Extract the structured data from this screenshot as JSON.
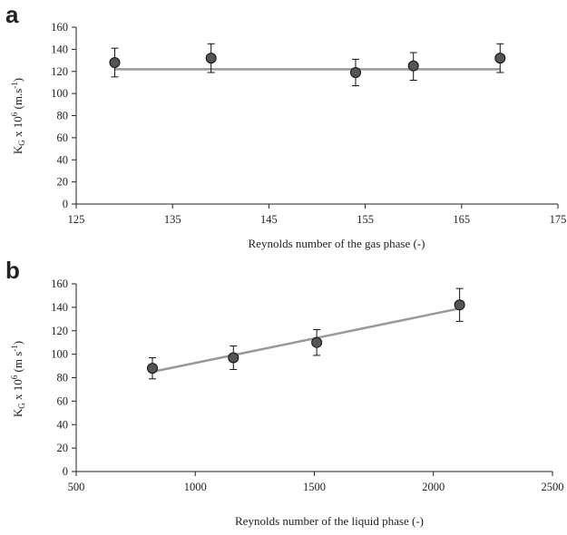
{
  "chart_data": [
    {
      "type": "scatter",
      "panel_label": "a",
      "xlabel": "Reynolds number of the gas phase (-)",
      "ylabel": "K",
      "ylabel_sub": "G",
      "ylabel_mid": " x 10",
      "ylabel_sup": "6",
      "ylabel_unit": " (m.s",
      "ylabel_unit_sup": "-1",
      "ylabel_end": ")",
      "xlim": [
        125,
        175
      ],
      "ylim": [
        0,
        160
      ],
      "xticks": [
        125,
        135,
        145,
        155,
        165,
        175
      ],
      "yticks": [
        0,
        20,
        40,
        60,
        80,
        100,
        120,
        140,
        160
      ],
      "grid": false,
      "points": {
        "x": [
          129,
          139,
          154,
          160,
          169
        ],
        "y": [
          128,
          132,
          119,
          125,
          132
        ],
        "error_low": [
          13,
          13,
          12,
          13,
          13
        ],
        "error_high": [
          13,
          13,
          12,
          12,
          13
        ]
      },
      "fit_line": {
        "x": [
          129,
          169
        ],
        "y": [
          122,
          122
        ]
      },
      "colors": {
        "marker": "#555555",
        "marker_edge": "#111111",
        "fit": "#999999",
        "axis": "#222222"
      }
    },
    {
      "type": "scatter",
      "panel_label": "b",
      "xlabel": "Reynolds number of the liquid phase (-)",
      "ylabel": "K",
      "ylabel_sub": "G",
      "ylabel_mid": " x 10",
      "ylabel_sup": "6",
      "ylabel_unit": " (m s",
      "ylabel_unit_sup": "-1",
      "ylabel_end": ")",
      "xlim": [
        500,
        2500
      ],
      "ylim": [
        0,
        160
      ],
      "xticks": [
        500,
        1000,
        1500,
        2000,
        2500
      ],
      "yticks": [
        0,
        20,
        40,
        60,
        80,
        100,
        120,
        140,
        160
      ],
      "grid": false,
      "points": {
        "x": [
          820,
          1160,
          1510,
          2110
        ],
        "y": [
          88,
          97,
          110,
          142
        ],
        "error_low": [
          9,
          10,
          11,
          14
        ],
        "error_high": [
          9,
          10,
          11,
          14
        ]
      },
      "fit_line": {
        "x": [
          820,
          2110
        ],
        "y": [
          85,
          139
        ]
      },
      "colors": {
        "marker": "#555555",
        "marker_edge": "#111111",
        "fit": "#999999",
        "axis": "#222222"
      }
    }
  ]
}
